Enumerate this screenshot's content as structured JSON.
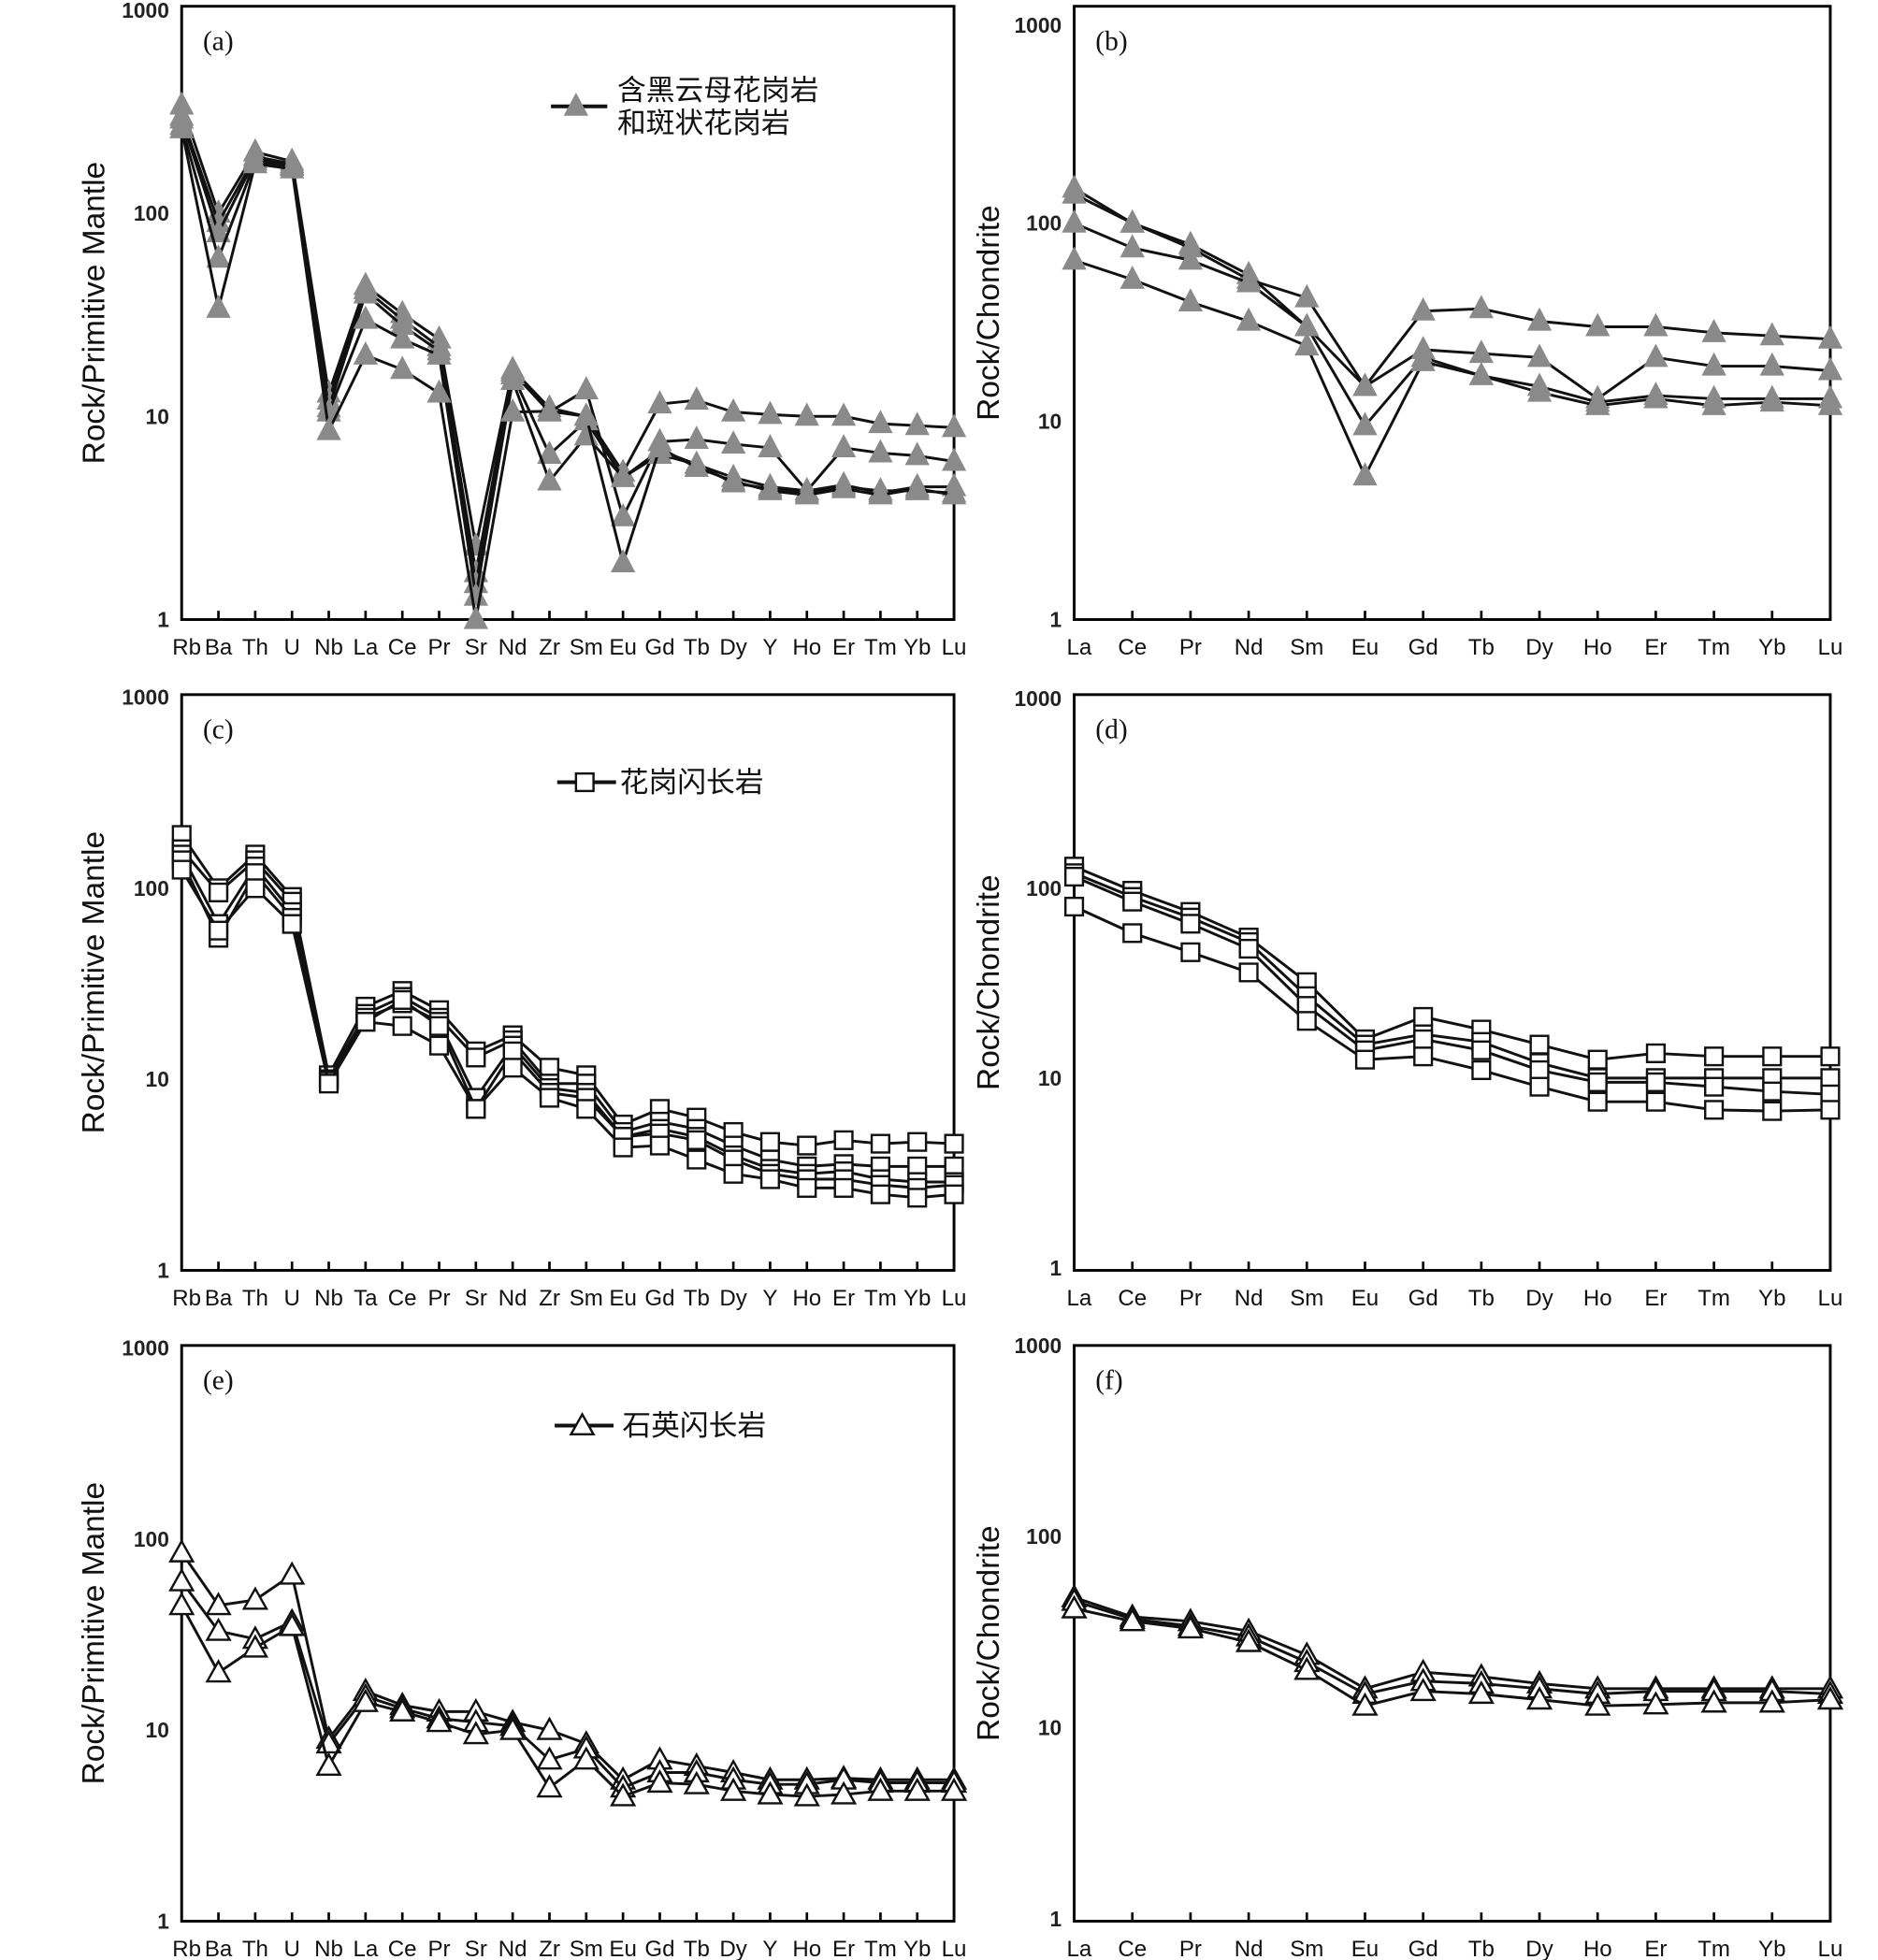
{
  "colors": {
    "line": "#111111",
    "filled_marker": "#8a8a8a",
    "open_marker_fill": "#ffffff"
  },
  "chart_data": [
    {
      "panel": "(a)",
      "type": "line",
      "yscale": "log",
      "ylim": [
        1,
        1000
      ],
      "ylabel": "Rock/Primitive Mantle",
      "yticks": [
        "1",
        "10",
        "100",
        "1000"
      ],
      "marker": "filled-triangle",
      "legend": {
        "lines": [
          "含黑云母花岗岩",
          "和斑状花岗岩"
        ]
      },
      "categories": [
        "Rb",
        "Ba",
        "Th",
        "U",
        "Nb",
        "La",
        "Ce",
        "Pr",
        "Sr",
        "Nd",
        "Zr",
        "Sm",
        "Eu",
        "Gd",
        "Tb",
        "Dy",
        "Y",
        "Ho",
        "Er",
        "Tm",
        "Yb",
        "Lu"
      ],
      "series": [
        {
          "values": [
            340,
            100,
            200,
            180,
            13,
            44,
            32,
            24,
            2.3,
            17,
            11,
            10,
            5.3,
            11.5,
            12,
            10.5,
            10.2,
            10,
            10,
            9.2,
            9,
            8.8
          ]
        },
        {
          "values": [
            300,
            90,
            190,
            175,
            12,
            42,
            30,
            22,
            1.7,
            16.5,
            10.5,
            13.5,
            3.2,
            7.5,
            7.7,
            7.3,
            7,
            4.3,
            7,
            6.6,
            6.4,
            6
          ]
        },
        {
          "values": [
            290,
            80,
            185,
            172,
            11,
            40,
            28,
            21,
            1.5,
            16,
            6.5,
            9.5,
            5,
            6.8,
            5.8,
            5,
            4.5,
            4.3,
            4.6,
            4.2,
            4.5,
            4.5
          ]
        },
        {
          "values": [
            270,
            60,
            180,
            170,
            10.5,
            30,
            24,
            20,
            1.3,
            15,
            4.8,
            8,
            5,
            6.5,
            5.8,
            4.7,
            4.4,
            4.2,
            4.5,
            4.3,
            4.3,
            4.2
          ]
        },
        {
          "values": [
            260,
            34,
            175,
            165,
            8.5,
            20,
            17,
            13,
            1.0,
            10.5,
            10.6,
            10,
            1.9,
            7,
            5.6,
            4.8,
            4.3,
            4.1,
            4.4,
            4.1,
            4.4,
            4.1
          ]
        }
      ]
    },
    {
      "panel": "(b)",
      "type": "line",
      "yscale": "log",
      "ylim": [
        1,
        1000
      ],
      "ylabel": "Rock/Chondrite",
      "yticks": [
        "1",
        "10",
        "100",
        "1000"
      ],
      "marker": "filled-triangle",
      "categories": [
        "La",
        "Ce",
        "Pr",
        "Nd",
        "Sm",
        "Eu",
        "Gd",
        "Tb",
        "Dy",
        "Ho",
        "Er",
        "Tm",
        "Yb",
        "Lu"
      ],
      "series": [
        {
          "values": [
            150,
            100,
            78,
            55,
            30,
            15,
            36,
            37,
            32,
            30,
            30,
            28,
            27,
            26
          ]
        },
        {
          "values": [
            140,
            100,
            75,
            52,
            42,
            15,
            23,
            22,
            21,
            13,
            21,
            19,
            19,
            18
          ]
        },
        {
          "values": [
            100,
            75,
            65,
            50,
            30,
            9.5,
            21,
            17,
            14,
            12,
            13,
            12,
            12.5,
            12
          ]
        },
        {
          "values": [
            65,
            52,
            40,
            32,
            24,
            5.3,
            20,
            17,
            15,
            12.5,
            13.5,
            13,
            13,
            13
          ]
        }
      ]
    },
    {
      "panel": "(c)",
      "type": "line",
      "yscale": "log",
      "ylim": [
        1,
        1000
      ],
      "ylabel": "Rock/Primitive Mantle",
      "yticks": [
        "1",
        "10",
        "100",
        "1000"
      ],
      "marker": "open-square",
      "legend": {
        "lines": [
          "花岗闪长岩"
        ]
      },
      "categories": [
        "Rb",
        "Ba",
        "Th",
        "U",
        "Nb",
        "Ta",
        "Ce",
        "Pr",
        "Sr",
        "Nd",
        "Zr",
        "Sm",
        "Eu",
        "Gd",
        "Tb",
        "Dy",
        "Y",
        "Ho",
        "Er",
        "Tm",
        "Yb",
        "Lu"
      ],
      "series": [
        {
          "values": [
            190,
            100,
            150,
            90,
            10.5,
            24,
            29,
            23,
            14,
            17,
            11.5,
            10.5,
            5.8,
            7,
            6.3,
            5.3,
            4.7,
            4.5,
            4.8,
            4.6,
            4.7,
            4.6
          ]
        },
        {
          "values": [
            160,
            95,
            140,
            85,
            10,
            22,
            27,
            21,
            13,
            16,
            9.5,
            9.5,
            5.3,
            6,
            5.5,
            4.5,
            3.8,
            3.5,
            3.6,
            3.5,
            3.5,
            3.5
          ]
        },
        {
          "values": [
            150,
            65,
            130,
            75,
            10,
            21,
            25,
            20,
            8,
            15,
            9,
            8.5,
            5,
            5.5,
            5,
            4,
            3.4,
            3.2,
            3.3,
            3,
            2.9,
            2.9
          ]
        },
        {
          "values": [
            140,
            55,
            120,
            70,
            9.8,
            20,
            26,
            19,
            7,
            14,
            8.5,
            8,
            5,
            5.2,
            4.8,
            3.8,
            3.2,
            3,
            3,
            2.8,
            2.7,
            2.8
          ]
        },
        {
          "values": [
            125,
            60,
            100,
            65,
            9.5,
            20,
            19,
            15,
            7,
            11.5,
            8,
            7,
            4.4,
            4.5,
            3.8,
            3.2,
            3,
            2.7,
            2.7,
            2.5,
            2.4,
            2.5
          ]
        }
      ]
    },
    {
      "panel": "(d)",
      "type": "line",
      "yscale": "log",
      "ylim": [
        1,
        1000
      ],
      "ylabel": "Rock/Chondrite",
      "yticks": [
        "1",
        "10",
        "100",
        "1000"
      ],
      "marker": "open-square",
      "categories": [
        "La",
        "Ce",
        "Pr",
        "Nd",
        "Sm",
        "Eu",
        "Gd",
        "Tb",
        "Dy",
        "Ho",
        "Er",
        "Tm",
        "Yb",
        "Lu"
      ],
      "series": [
        {
          "values": [
            130,
            97,
            75,
            55,
            32,
            16,
            21,
            18,
            15,
            12.5,
            13.5,
            13,
            13,
            13
          ]
        },
        {
          "values": [
            120,
            90,
            70,
            52,
            27,
            15,
            17,
            15.5,
            12,
            10,
            10,
            10,
            10,
            10
          ]
        },
        {
          "values": [
            115,
            85,
            65,
            48,
            24,
            14,
            16,
            14,
            11,
            9.5,
            9.5,
            9,
            8.5,
            8.2
          ]
        },
        {
          "values": [
            80,
            58,
            46,
            36,
            20,
            12.5,
            13,
            11,
            9,
            7.5,
            7.5,
            6.8,
            6.7,
            6.8
          ]
        }
      ]
    },
    {
      "panel": "(e)",
      "type": "line",
      "yscale": "log",
      "ylim": [
        1,
        1000
      ],
      "ylabel": "Rock/Primitive Mantle",
      "yticks": [
        "1",
        "10",
        "100",
        "1000"
      ],
      "marker": "open-triangle",
      "legend": {
        "lines": [
          "石英闪长岩"
        ]
      },
      "categories": [
        "Rb",
        "Ba",
        "Th",
        "U",
        "Nb",
        "La",
        "Ce",
        "Pr",
        "Sr",
        "Nd",
        "Zr",
        "Sm",
        "Eu",
        "Gd",
        "Tb",
        "Dy",
        "Y",
        "Ho",
        "Er",
        "Tm",
        "Yb",
        "Lu"
      ],
      "series": [
        {
          "values": [
            85,
            45,
            48,
            65,
            9,
            16,
            13.5,
            12.5,
            12.5,
            11,
            10,
            8.5,
            5.5,
            7,
            6.5,
            6,
            5.5,
            5.5,
            5.6,
            5.5,
            5.5,
            5.5
          ]
        },
        {
          "values": [
            60,
            33,
            30,
            37,
            8.5,
            15,
            13,
            11.5,
            11,
            10.5,
            7,
            8,
            5,
            6,
            6,
            5.5,
            5.2,
            5.2,
            5.5,
            5.3,
            5.3,
            5.3
          ]
        },
        {
          "values": [
            45,
            20,
            27,
            35,
            6.5,
            14,
            12.5,
            11,
            9.5,
            10,
            5,
            7,
            4.5,
            5.3,
            5.2,
            4.8,
            4.6,
            4.5,
            4.6,
            4.8,
            4.8,
            4.8
          ]
        }
      ]
    },
    {
      "panel": "(f)",
      "type": "line",
      "yscale": "log",
      "ylim": [
        1,
        1000
      ],
      "ylabel": "Rock/Chondrite",
      "yticks": [
        "1",
        "10",
        "100",
        "1000"
      ],
      "marker": "open-triangle",
      "categories": [
        "La",
        "Ce",
        "Pr",
        "Nd",
        "Sm",
        "Eu",
        "Gd",
        "Tb",
        "Dy",
        "Ho",
        "Er",
        "Tm",
        "Yb",
        "Lu"
      ],
      "series": [
        {
          "values": [
            48,
            38,
            36,
            32,
            24,
            16,
            19.5,
            18.5,
            17,
            16,
            16,
            16,
            16,
            16
          ]
        },
        {
          "values": [
            46,
            37,
            34,
            30,
            22,
            15,
            17.5,
            17,
            16,
            15,
            15.5,
            15.5,
            15.5,
            15
          ]
        },
        {
          "values": [
            42,
            36,
            33,
            28,
            20,
            13,
            15.5,
            15,
            14,
            13,
            13.2,
            13.5,
            13.5,
            14
          ]
        }
      ]
    }
  ]
}
